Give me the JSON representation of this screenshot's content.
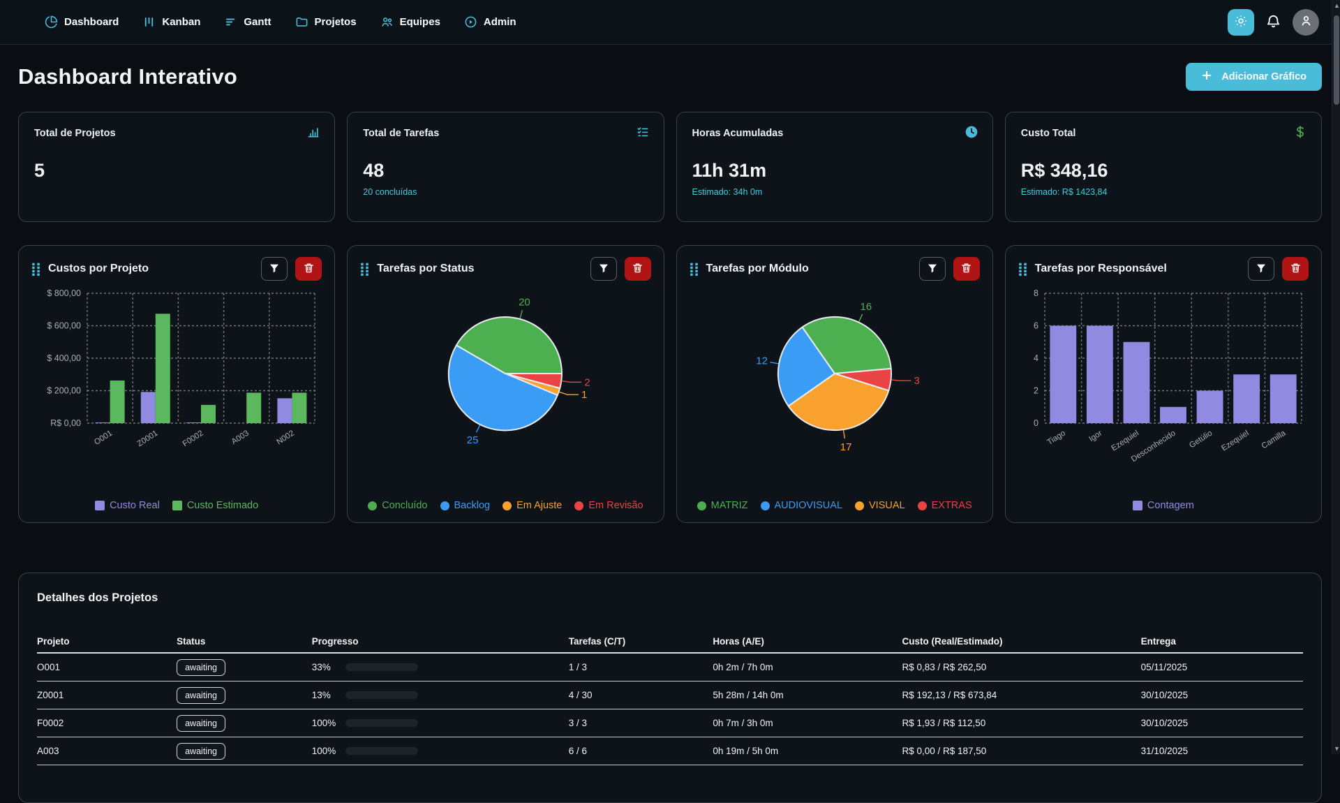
{
  "nav": {
    "items": [
      {
        "label": "Dashboard",
        "icon": "pie-chart"
      },
      {
        "label": "Kanban",
        "icon": "kanban"
      },
      {
        "label": "Gantt",
        "icon": "gantt"
      },
      {
        "label": "Projetos",
        "icon": "folder"
      },
      {
        "label": "Equipes",
        "icon": "users"
      },
      {
        "label": "Admin",
        "icon": "admin"
      }
    ]
  },
  "header": {
    "title": "Dashboard Interativo",
    "add_chart_label": "Adicionar Gráfico"
  },
  "colors": {
    "accent": "#49bcd9",
    "purple": "#918ae0",
    "bar_green": "#5cb85f",
    "green": "#4caf50",
    "blue": "#3b9cf5",
    "orange": "#f9a12e",
    "red": "#e94343",
    "danger": "#b01414"
  },
  "stats": [
    {
      "title": "Total de Projetos",
      "icon": "bar-chart",
      "icon_color": "#49bcd9",
      "value": "5",
      "subtext": ""
    },
    {
      "title": "Total de Tarefas",
      "icon": "checklist",
      "icon_color": "#49bcd9",
      "value": "48",
      "subtext": "20 concluídas"
    },
    {
      "title": "Horas Acumuladas",
      "icon": "clock",
      "icon_color": "#49bcd9",
      "value": "11h 31m",
      "subtext": "Estimado: 34h 0m"
    },
    {
      "title": "Custo Total",
      "icon": "dollar",
      "icon_color": "#4caf50",
      "value": "R$ 348,16",
      "subtext": "Estimado: R$ 1423,84"
    }
  ],
  "charts": [
    {
      "title": "Custos por Projeto",
      "chart_data": {
        "type": "bar",
        "categories": [
          "O001",
          "Z0001",
          "F0002",
          "A003",
          "N002"
        ],
        "series": [
          {
            "name": "Custo Real",
            "color": "#918ae0",
            "values": [
              0.83,
              192.13,
              1.93,
              0,
              153.27
            ]
          },
          {
            "name": "Custo Estimado",
            "color": "#5cb85f",
            "values": [
              262.5,
              673.84,
              112.5,
              187.5,
              187.5
            ]
          }
        ],
        "ylim": [
          0,
          800
        ],
        "yticks": [
          {
            "v": 0,
            "label": "R$ 0,00"
          },
          {
            "v": 200,
            "label": "$ 200,00"
          },
          {
            "v": 400,
            "label": "$ 400,00"
          },
          {
            "v": 600,
            "label": "$ 600,00"
          },
          {
            "v": 800,
            "label": "$ 800,00"
          }
        ],
        "grid": true,
        "legend_position": "bottom"
      }
    },
    {
      "title": "Tarefas por Status",
      "chart_data": {
        "type": "pie",
        "slices": [
          {
            "label": "Concluído",
            "value": 20,
            "color": "#4caf50"
          },
          {
            "label": "Backlog",
            "value": 25,
            "color": "#3b9cf5"
          },
          {
            "label": "Em Ajuste",
            "value": 1,
            "color": "#f9a12e"
          },
          {
            "label": "Em Revisão",
            "value": 2,
            "color": "#e94343"
          }
        ],
        "draw_order": [
          0,
          3,
          2,
          1
        ],
        "start_angle": 300,
        "legend_position": "bottom"
      }
    },
    {
      "title": "Tarefas por Módulo",
      "chart_data": {
        "type": "pie",
        "slices": [
          {
            "label": "MATRIZ",
            "value": 16,
            "color": "#4caf50"
          },
          {
            "label": "AUDIOVISUAL",
            "value": 12,
            "color": "#3b9cf5"
          },
          {
            "label": "VISUAL",
            "value": 17,
            "color": "#f9a12e"
          },
          {
            "label": "EXTRAS",
            "value": 3,
            "color": "#e94343"
          }
        ],
        "draw_order": [
          0,
          3,
          2,
          1
        ],
        "start_angle": 325,
        "legend_position": "bottom"
      }
    },
    {
      "title": "Tarefas por Responsável",
      "chart_data": {
        "type": "bar",
        "categories": [
          "Tiago",
          "Igor",
          "Ezequiel",
          "Desconhecido",
          "Getúlio",
          "Ezequiel",
          "Camilla"
        ],
        "series": [
          {
            "name": "Contagem",
            "color": "#918ae0",
            "values": [
              6,
              6,
              5,
              1,
              2,
              3,
              3
            ]
          }
        ],
        "ylim": [
          0,
          8
        ],
        "yticks": [
          {
            "v": 0,
            "label": "0"
          },
          {
            "v": 2,
            "label": "2"
          },
          {
            "v": 4,
            "label": "4"
          },
          {
            "v": 6,
            "label": "6"
          },
          {
            "v": 8,
            "label": "8"
          }
        ],
        "grid": true,
        "legend_position": "bottom"
      }
    }
  ],
  "chart_buttons": {
    "filter": "filter",
    "delete": "delete"
  },
  "table": {
    "title": "Detalhes dos Projetos",
    "columns": [
      "Projeto",
      "Status",
      "Progresso",
      "Tarefas (C/T)",
      "Horas (A/E)",
      "Custo (Real/Estimado)",
      "Entrega"
    ],
    "rows": [
      {
        "projeto": "O001",
        "status": "awaiting",
        "progresso_pct": 33,
        "progresso_label": "33%",
        "tarefas": "1 / 3",
        "horas": "0h 2m / 7h 0m",
        "custo": "R$ 0,83 / R$ 262,50",
        "entrega": "05/11/2025"
      },
      {
        "projeto": "Z0001",
        "status": "awaiting",
        "progresso_pct": 13,
        "progresso_label": "13%",
        "tarefas": "4 / 30",
        "horas": "5h 28m / 14h 0m",
        "custo": "R$ 192,13 / R$ 673,84",
        "entrega": "30/10/2025"
      },
      {
        "projeto": "F0002",
        "status": "awaiting",
        "progresso_pct": 100,
        "progresso_label": "100%",
        "tarefas": "3 / 3",
        "horas": "0h 7m / 3h 0m",
        "custo": "R$ 1,93 / R$ 112,50",
        "entrega": "30/10/2025"
      },
      {
        "projeto": "A003",
        "status": "awaiting",
        "progresso_pct": 100,
        "progresso_label": "100%",
        "tarefas": "6 / 6",
        "horas": "0h 19m / 5h 0m",
        "custo": "R$ 0,00 / R$ 187,50",
        "entrega": "31/10/2025"
      }
    ]
  }
}
